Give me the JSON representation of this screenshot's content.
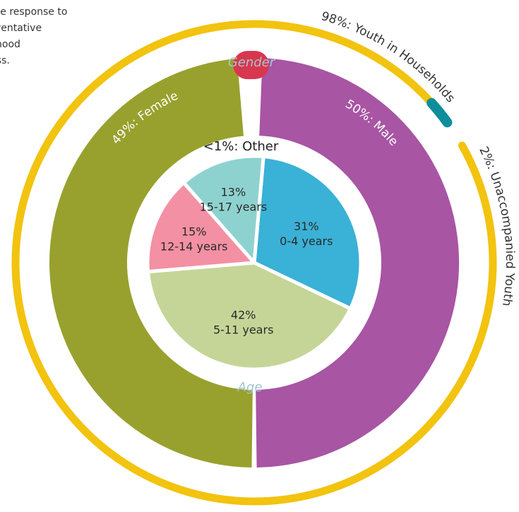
{
  "intro_text": [
    "w the response to",
    "preventative",
    "kelihood",
    "sness."
  ],
  "chart_data": {
    "type": "pie",
    "rings": [
      {
        "name": "",
        "labels": [
          "98%: Youth in Households",
          "2%: Unaccompanied Youth"
        ],
        "values": [
          98,
          2
        ],
        "colors": [
          "#F2C30F",
          "#0E8E9A"
        ]
      },
      {
        "name": "Gender",
        "labels": [
          "50%: Male",
          "49%: Female",
          "<1%: Other"
        ],
        "values": [
          50,
          49,
          1
        ],
        "colors": [
          "#A855A3",
          "#98A12D",
          "#D8374F"
        ]
      },
      {
        "name": "Age",
        "labels": [
          "0-4 years",
          "5-11 years",
          "12-14 years",
          "15-17 years"
        ],
        "values": [
          31,
          42,
          15,
          13
        ],
        "value_labels": [
          "31%",
          "42%",
          "15%",
          "13%"
        ],
        "colors": [
          "#3AB1D6",
          "#C5D597",
          "#F490A3",
          "#8ED2CF"
        ]
      }
    ]
  }
}
